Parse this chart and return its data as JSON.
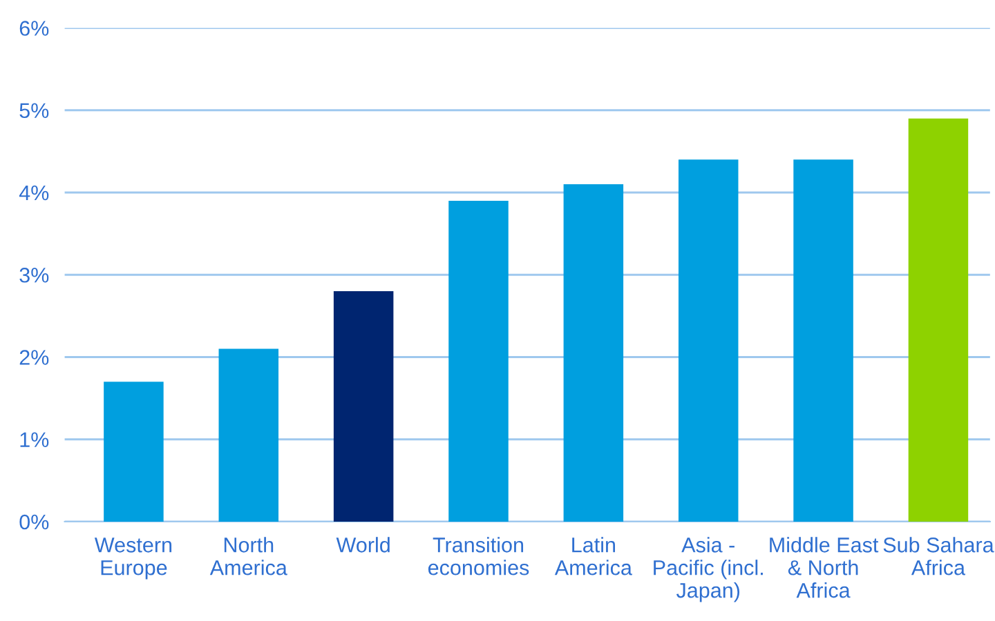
{
  "chart_data": {
    "type": "bar",
    "categories": [
      "Western\nEurope",
      "North\nAmerica",
      "World",
      "Transition\neconomies",
      "Latin\nAmerica",
      "Asia -\nPacific (incl.\nJapan)",
      "Middle East\n& North\nAfrica",
      "Sub Sahara\nAfrica"
    ],
    "values": [
      1.7,
      2.1,
      2.8,
      3.9,
      4.1,
      4.4,
      4.4,
      4.9
    ],
    "colors": [
      "#009fdf",
      "#009fdf",
      "#002570",
      "#009fdf",
      "#009fdf",
      "#009fdf",
      "#009fdf",
      "#8ed200"
    ],
    "ylim": [
      0,
      6
    ],
    "yticks": [
      {
        "value": 0,
        "label": "0%"
      },
      {
        "value": 1,
        "label": "1%"
      },
      {
        "value": 2,
        "label": "2%"
      },
      {
        "value": 3,
        "label": "3%"
      },
      {
        "value": 4,
        "label": "4%"
      },
      {
        "value": 5,
        "label": "5%"
      },
      {
        "value": 6,
        "label": "6%"
      }
    ],
    "grid": "y"
  }
}
